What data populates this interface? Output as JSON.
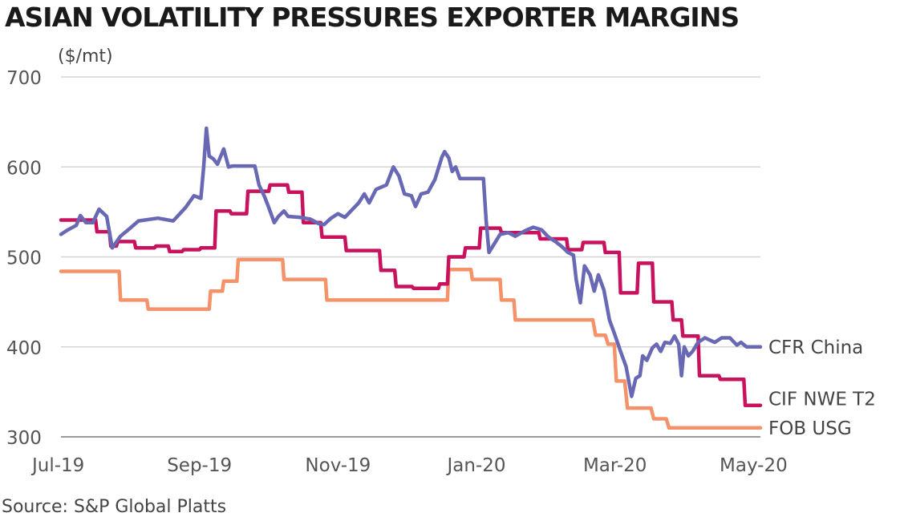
{
  "header": {
    "title": "ASIAN VOLATILITY PRESSURES EXPORTER MARGINS"
  },
  "footer": {
    "source": "Source: S&P Global Platts"
  },
  "chart_data": {
    "type": "line",
    "title": "ASIAN VOLATILITY PRESSURES EXPORTER MARGINS",
    "ylabel": "($/mt)",
    "xlabel": "",
    "ylim": [
      300,
      700
    ],
    "yticks": [
      "300",
      "400",
      "500",
      "600",
      "700"
    ],
    "xlim": [
      0,
      10.1
    ],
    "xticks": [
      {
        "x": 0,
        "label": "Jul-19"
      },
      {
        "x": 2,
        "label": "Sep-19"
      },
      {
        "x": 4,
        "label": "Nov-19"
      },
      {
        "x": 6,
        "label": "Jan-20"
      },
      {
        "x": 8,
        "label": "Mar-20"
      },
      {
        "x": 10,
        "label": "May-20"
      }
    ],
    "grid": true,
    "legend": "end-of-line labels (right)",
    "series": [
      {
        "name": "FOB USG",
        "color": "#f4936a",
        "points": [
          [
            0,
            484
          ],
          [
            0.84,
            484
          ],
          [
            0.86,
            452
          ],
          [
            1.24,
            452
          ],
          [
            1.26,
            442
          ],
          [
            2.14,
            442
          ],
          [
            2.16,
            462
          ],
          [
            2.33,
            462
          ],
          [
            2.35,
            473
          ],
          [
            2.54,
            473
          ],
          [
            2.56,
            497
          ],
          [
            3.2,
            497
          ],
          [
            3.22,
            475
          ],
          [
            3.82,
            475
          ],
          [
            3.84,
            452
          ],
          [
            5.58,
            452
          ],
          [
            5.6,
            486
          ],
          [
            5.92,
            486
          ],
          [
            5.94,
            475
          ],
          [
            6.34,
            475
          ],
          [
            6.36,
            452
          ],
          [
            6.54,
            452
          ],
          [
            6.56,
            430
          ],
          [
            7.68,
            430
          ],
          [
            7.72,
            413
          ],
          [
            7.86,
            413
          ],
          [
            7.9,
            403
          ],
          [
            7.99,
            403
          ],
          [
            8.02,
            362
          ],
          [
            8.14,
            362
          ],
          [
            8.18,
            332
          ],
          [
            8.52,
            332
          ],
          [
            8.56,
            320
          ],
          [
            8.74,
            320
          ],
          [
            8.78,
            310
          ],
          [
            10.1,
            310
          ]
        ]
      },
      {
        "name": "CIF NWE T2",
        "color": "#c8125e",
        "points": [
          [
            0,
            541
          ],
          [
            0.5,
            541
          ],
          [
            0.52,
            528
          ],
          [
            0.7,
            528
          ],
          [
            0.72,
            512
          ],
          [
            0.8,
            512
          ],
          [
            0.82,
            517
          ],
          [
            1.06,
            517
          ],
          [
            1.08,
            510
          ],
          [
            1.35,
            510
          ],
          [
            1.37,
            512
          ],
          [
            1.55,
            512
          ],
          [
            1.57,
            506
          ],
          [
            1.75,
            506
          ],
          [
            1.77,
            508
          ],
          [
            2.0,
            508
          ],
          [
            2.02,
            510
          ],
          [
            2.22,
            510
          ],
          [
            2.24,
            551
          ],
          [
            2.44,
            551
          ],
          [
            2.46,
            548
          ],
          [
            2.68,
            548
          ],
          [
            2.7,
            573
          ],
          [
            3.0,
            573
          ],
          [
            3.02,
            580
          ],
          [
            3.27,
            580
          ],
          [
            3.29,
            572
          ],
          [
            3.48,
            572
          ],
          [
            3.5,
            538
          ],
          [
            3.75,
            538
          ],
          [
            3.77,
            522
          ],
          [
            4.1,
            522
          ],
          [
            4.12,
            507
          ],
          [
            4.6,
            507
          ],
          [
            4.62,
            485
          ],
          [
            4.82,
            485
          ],
          [
            4.84,
            467
          ],
          [
            5.07,
            467
          ],
          [
            5.09,
            465
          ],
          [
            5.45,
            465
          ],
          [
            5.47,
            470
          ],
          [
            5.58,
            470
          ],
          [
            5.6,
            500
          ],
          [
            5.82,
            500
          ],
          [
            5.84,
            510
          ],
          [
            6.04,
            510
          ],
          [
            6.06,
            532
          ],
          [
            6.34,
            532
          ],
          [
            6.36,
            527
          ],
          [
            6.9,
            527
          ],
          [
            6.92,
            520
          ],
          [
            7.3,
            520
          ],
          [
            7.32,
            508
          ],
          [
            7.52,
            508
          ],
          [
            7.54,
            516
          ],
          [
            7.84,
            516
          ],
          [
            7.86,
            505
          ],
          [
            8.06,
            505
          ],
          [
            8.08,
            460
          ],
          [
            8.32,
            460
          ],
          [
            8.34,
            493
          ],
          [
            8.54,
            493
          ],
          [
            8.56,
            450
          ],
          [
            8.82,
            450
          ],
          [
            8.84,
            430
          ],
          [
            8.96,
            430
          ],
          [
            8.98,
            412
          ],
          [
            9.2,
            412
          ],
          [
            9.22,
            368
          ],
          [
            9.5,
            368
          ],
          [
            9.52,
            364
          ],
          [
            9.86,
            364
          ],
          [
            9.88,
            335
          ],
          [
            10.1,
            335
          ]
        ]
      },
      {
        "name": "CFR China",
        "color": "#6868b4",
        "points": [
          [
            0,
            525
          ],
          [
            0.1,
            530
          ],
          [
            0.22,
            535
          ],
          [
            0.28,
            546
          ],
          [
            0.36,
            538
          ],
          [
            0.46,
            538
          ],
          [
            0.55,
            553
          ],
          [
            0.66,
            545
          ],
          [
            0.74,
            510
          ],
          [
            0.86,
            523
          ],
          [
            1.0,
            532
          ],
          [
            1.12,
            540
          ],
          [
            1.4,
            543
          ],
          [
            1.62,
            540
          ],
          [
            1.8,
            555
          ],
          [
            1.92,
            568
          ],
          [
            2.02,
            565
          ],
          [
            2.06,
            600
          ],
          [
            2.1,
            643
          ],
          [
            2.14,
            612
          ],
          [
            2.2,
            609
          ],
          [
            2.26,
            603
          ],
          [
            2.35,
            620
          ],
          [
            2.42,
            600
          ],
          [
            2.48,
            601
          ],
          [
            2.8,
            601
          ],
          [
            2.86,
            580
          ],
          [
            2.94,
            567
          ],
          [
            3.0,
            555
          ],
          [
            3.08,
            538
          ],
          [
            3.14,
            545
          ],
          [
            3.22,
            551
          ],
          [
            3.28,
            545
          ],
          [
            3.45,
            544
          ],
          [
            3.6,
            542
          ],
          [
            3.72,
            537
          ],
          [
            3.8,
            536
          ],
          [
            3.9,
            543
          ],
          [
            4.0,
            548
          ],
          [
            4.1,
            544
          ],
          [
            4.2,
            552
          ],
          [
            4.3,
            560
          ],
          [
            4.38,
            570
          ],
          [
            4.45,
            560
          ],
          [
            4.55,
            575
          ],
          [
            4.7,
            580
          ],
          [
            4.8,
            600
          ],
          [
            4.88,
            590
          ],
          [
            4.96,
            570
          ],
          [
            5.06,
            568
          ],
          [
            5.12,
            556
          ],
          [
            5.2,
            570
          ],
          [
            5.3,
            572
          ],
          [
            5.4,
            586
          ],
          [
            5.5,
            611
          ],
          [
            5.54,
            617
          ],
          [
            5.6,
            610
          ],
          [
            5.65,
            595
          ],
          [
            5.7,
            600
          ],
          [
            5.76,
            587
          ],
          [
            6.1,
            587
          ],
          [
            6.14,
            540
          ],
          [
            6.18,
            505
          ],
          [
            6.26,
            515
          ],
          [
            6.34,
            525
          ],
          [
            6.46,
            527
          ],
          [
            6.56,
            523
          ],
          [
            6.7,
            529
          ],
          [
            6.82,
            533
          ],
          [
            6.94,
            530
          ],
          [
            7.04,
            522
          ],
          [
            7.14,
            517
          ],
          [
            7.24,
            511
          ],
          [
            7.32,
            505
          ],
          [
            7.4,
            502
          ],
          [
            7.44,
            475
          ],
          [
            7.5,
            449
          ],
          [
            7.56,
            490
          ],
          [
            7.64,
            480
          ],
          [
            7.7,
            462
          ],
          [
            7.76,
            480
          ],
          [
            7.84,
            463
          ],
          [
            7.92,
            430
          ],
          [
            8.0,
            413
          ],
          [
            8.08,
            395
          ],
          [
            8.16,
            378
          ],
          [
            8.24,
            345
          ],
          [
            8.3,
            365
          ],
          [
            8.36,
            368
          ],
          [
            8.4,
            390
          ],
          [
            8.46,
            385
          ],
          [
            8.54,
            399
          ],
          [
            8.6,
            403
          ],
          [
            8.66,
            395
          ],
          [
            8.72,
            405
          ],
          [
            8.8,
            404
          ],
          [
            8.86,
            412
          ],
          [
            8.92,
            403
          ],
          [
            8.96,
            368
          ],
          [
            9.0,
            400
          ],
          [
            9.06,
            390
          ],
          [
            9.12,
            395
          ],
          [
            9.2,
            405
          ],
          [
            9.3,
            410
          ],
          [
            9.44,
            405
          ],
          [
            9.54,
            410
          ],
          [
            9.66,
            410
          ],
          [
            9.76,
            402
          ],
          [
            9.82,
            405
          ],
          [
            9.9,
            400
          ],
          [
            10.1,
            400
          ]
        ]
      }
    ]
  }
}
